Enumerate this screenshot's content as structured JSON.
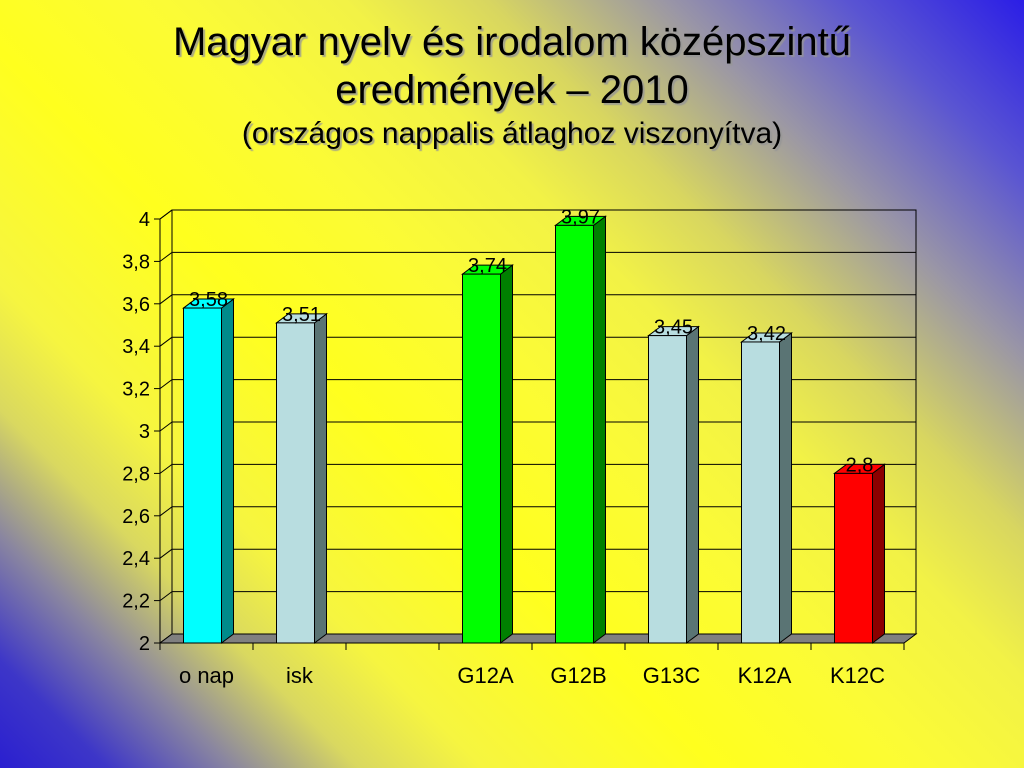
{
  "slide": {
    "title_line1": "Magyar nyelv és irodalom középszintű",
    "title_line2": "eredmények – 2010",
    "title_line3": "(országos nappalis átlaghoz viszonyítva)"
  },
  "chart_data": {
    "type": "bar",
    "categories": [
      "o nap",
      "isk",
      "",
      "G12A",
      "G12B",
      "G13C",
      "K12A",
      "K12C"
    ],
    "values": [
      3.58,
      3.51,
      null,
      3.74,
      3.97,
      3.45,
      3.42,
      2.8
    ],
    "data_labels": [
      "3,58",
      "3,51",
      "",
      "3,74",
      "3,97",
      "3,45",
      "3,42",
      "2,8"
    ],
    "bar_colors": [
      "#00ffff",
      "#b8dde0",
      null,
      "#00ff00",
      "#00ff00",
      "#b8dde0",
      "#b8dde0",
      "#ff0000"
    ],
    "bar_side_colors": [
      "#008b8b",
      "#5a7474",
      null,
      "#008000",
      "#008000",
      "#5a7474",
      "#5a7474",
      "#8b0000"
    ],
    "ylim": [
      2,
      4
    ],
    "yticks": [
      2,
      2.2,
      2.4,
      2.6,
      2.8,
      3,
      3.2,
      3.4,
      3.6,
      3.8,
      4
    ],
    "ytick_labels": [
      "2",
      "2,2",
      "2,4",
      "2,6",
      "2,8",
      "3",
      "3,2",
      "3,4",
      "3,6",
      "3,8",
      "4"
    ],
    "grid": true,
    "three_d": true,
    "title": "",
    "xlabel": "",
    "ylabel": ""
  }
}
